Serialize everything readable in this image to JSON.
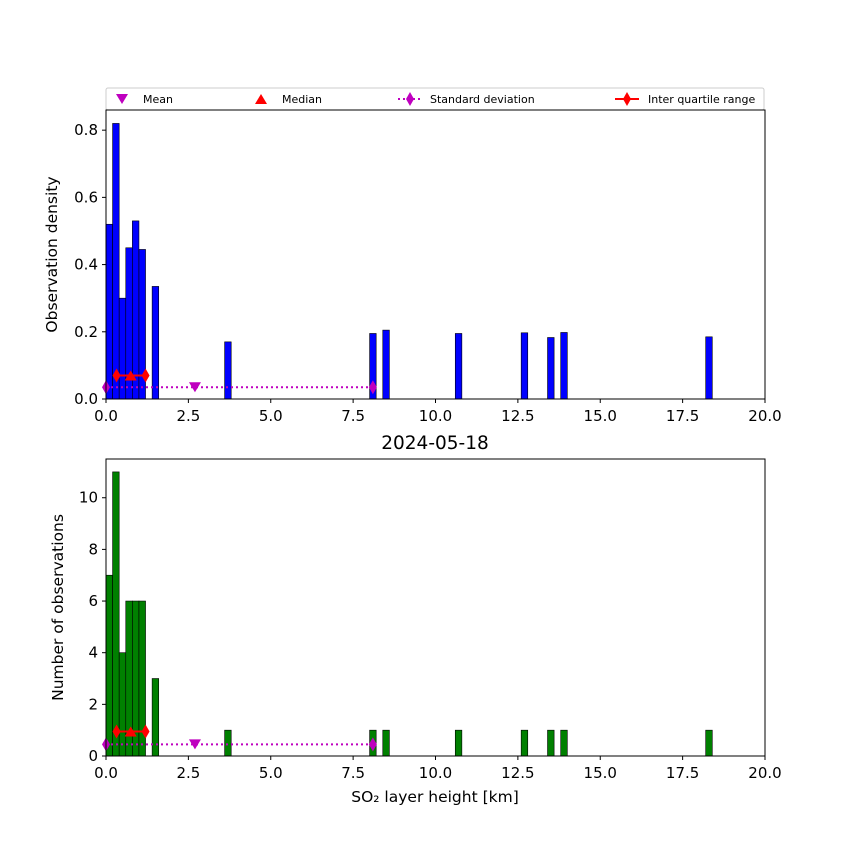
{
  "legend": {
    "mean": "Mean",
    "median": "Median",
    "std": "Standard deviation",
    "iqr": "Inter quartile range"
  },
  "colors": {
    "density_bar": "#0000ff",
    "count_bar": "#008000",
    "mean_marker": "#bf00bf",
    "median_marker": "#ff0000",
    "std_line": "#bf00bf",
    "iqr_line": "#ff0000"
  },
  "chart_data": [
    {
      "type": "bar",
      "title": "",
      "xlabel": "",
      "ylabel": "Observation density",
      "xlim": [
        0,
        20
      ],
      "ylim": [
        0,
        0.86
      ],
      "xticks": [
        "0.0",
        "2.5",
        "5.0",
        "7.5",
        "10.0",
        "12.5",
        "15.0",
        "17.5",
        "20.0"
      ],
      "yticks": [
        "0.0",
        "0.2",
        "0.4",
        "0.6",
        "0.8"
      ],
      "ytick_values": [
        0,
        0.2,
        0.4,
        0.6,
        0.8
      ],
      "grid": false,
      "legend_placement": "above",
      "bars": [
        {
          "x0": 0.0,
          "x1": 0.2,
          "value": 0.52
        },
        {
          "x0": 0.2,
          "x1": 0.4,
          "value": 0.82
        },
        {
          "x0": 0.4,
          "x1": 0.6,
          "value": 0.3
        },
        {
          "x0": 0.6,
          "x1": 0.8,
          "value": 0.45
        },
        {
          "x0": 0.8,
          "x1": 1.0,
          "value": 0.53
        },
        {
          "x0": 1.0,
          "x1": 1.2,
          "value": 0.445
        },
        {
          "x0": 1.4,
          "x1": 1.6,
          "value": 0.335
        },
        {
          "x0": 3.6,
          "x1": 3.8,
          "value": 0.17
        },
        {
          "x0": 8.0,
          "x1": 8.2,
          "value": 0.195
        },
        {
          "x0": 8.4,
          "x1": 8.6,
          "value": 0.205
        },
        {
          "x0": 10.6,
          "x1": 10.8,
          "value": 0.195
        },
        {
          "x0": 12.6,
          "x1": 12.8,
          "value": 0.197
        },
        {
          "x0": 13.4,
          "x1": 13.6,
          "value": 0.183
        },
        {
          "x0": 13.8,
          "x1": 14.0,
          "value": 0.198
        },
        {
          "x0": 18.2,
          "x1": 18.4,
          "value": 0.185
        }
      ],
      "stats": {
        "mean": 2.7,
        "median": 0.75,
        "iqr": [
          0.32,
          1.2
        ],
        "std": [
          0.0,
          8.1
        ],
        "marker_y": 0.035,
        "iqr_y": 0.07
      }
    },
    {
      "type": "bar",
      "title": "2024-05-18",
      "xlabel": "SO₂ layer height [km]",
      "ylabel": "Number of observations",
      "xlim": [
        0,
        20
      ],
      "ylim": [
        0,
        11.5
      ],
      "xticks": [
        "0.0",
        "2.5",
        "5.0",
        "7.5",
        "10.0",
        "12.5",
        "15.0",
        "17.5",
        "20.0"
      ],
      "yticks": [
        "0",
        "2",
        "4",
        "6",
        "8",
        "10"
      ],
      "ytick_values": [
        0,
        2,
        4,
        6,
        8,
        10
      ],
      "grid": false,
      "bars": [
        {
          "x0": 0.0,
          "x1": 0.2,
          "value": 7
        },
        {
          "x0": 0.2,
          "x1": 0.4,
          "value": 11
        },
        {
          "x0": 0.4,
          "x1": 0.6,
          "value": 4
        },
        {
          "x0": 0.6,
          "x1": 0.8,
          "value": 6
        },
        {
          "x0": 0.8,
          "x1": 1.0,
          "value": 6
        },
        {
          "x0": 1.0,
          "x1": 1.2,
          "value": 6
        },
        {
          "x0": 1.4,
          "x1": 1.6,
          "value": 3
        },
        {
          "x0": 3.6,
          "x1": 3.8,
          "value": 1
        },
        {
          "x0": 8.0,
          "x1": 8.2,
          "value": 1
        },
        {
          "x0": 8.4,
          "x1": 8.6,
          "value": 1
        },
        {
          "x0": 10.6,
          "x1": 10.8,
          "value": 1
        },
        {
          "x0": 12.6,
          "x1": 12.8,
          "value": 1
        },
        {
          "x0": 13.4,
          "x1": 13.6,
          "value": 1
        },
        {
          "x0": 13.8,
          "x1": 14.0,
          "value": 1
        },
        {
          "x0": 18.2,
          "x1": 18.4,
          "value": 1
        }
      ],
      "stats": {
        "mean": 2.7,
        "median": 0.75,
        "iqr": [
          0.32,
          1.2
        ],
        "std": [
          0.0,
          8.1
        ],
        "marker_y": 0.45,
        "iqr_y": 0.95
      }
    }
  ]
}
